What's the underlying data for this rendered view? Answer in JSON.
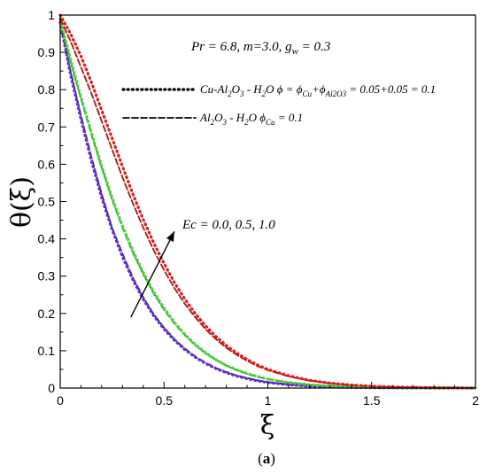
{
  "chart_data": {
    "type": "line",
    "xlabel": "ξ",
    "ylabel": "θ(ξ)",
    "xlim": [
      0,
      2
    ],
    "ylim": [
      0,
      1
    ],
    "x_ticks": [
      "0",
      "0.5",
      "1",
      "1.5",
      "2"
    ],
    "y_ticks": [
      "0",
      "0.1",
      "0.2",
      "0.3",
      "0.4",
      "0.5",
      "0.6",
      "0.7",
      "0.8",
      "0.9",
      "1"
    ],
    "grid": false,
    "params_text": {
      "pr": "Pr = 6.8, m=3.0, g",
      "gw_sub": "w",
      "gw_val": " = 0.3"
    },
    "legend": {
      "placement": "top-right",
      "entries": [
        {
          "style": "dotted",
          "parts": [
            {
              "t": "Cu-Al",
              "s": "n"
            },
            {
              "t": "2",
              "s": "sub"
            },
            {
              "t": "O",
              "s": "n"
            },
            {
              "t": "3",
              "s": "sub"
            },
            {
              "t": " - H",
              "s": "n"
            },
            {
              "t": "2",
              "s": "sub"
            },
            {
              "t": "O  ϕ = ϕ",
              "s": "n"
            },
            {
              "t": "Cu",
              "s": "sub"
            },
            {
              "t": "+ϕ",
              "s": "n"
            },
            {
              "t": "Al2O3",
              "s": "sub"
            },
            {
              "t": " = 0.05+0.05 = 0.1",
              "s": "n"
            }
          ]
        },
        {
          "style": "dashed",
          "parts": [
            {
              "t": "Al",
              "s": "n"
            },
            {
              "t": "2",
              "s": "sub"
            },
            {
              "t": "O",
              "s": "n"
            },
            {
              "t": "3",
              "s": "sub"
            },
            {
              "t": " - H",
              "s": "n"
            },
            {
              "t": "2",
              "s": "sub"
            },
            {
              "t": "O  ϕ",
              "s": "n"
            },
            {
              "t": "Cu",
              "s": "sub"
            },
            {
              "t": " = 0.1",
              "s": "n"
            }
          ]
        }
      ]
    },
    "annotation": {
      "text": "Ec = 0.0, 0.5, 1.0",
      "arrow_from": [
        0.34,
        0.19
      ],
      "arrow_to": [
        0.55,
        0.42
      ]
    },
    "caption": {
      "open": "(",
      "letter": "a",
      "close": ")"
    },
    "x": [
      0,
      0.05,
      0.1,
      0.15,
      0.2,
      0.25,
      0.3,
      0.35,
      0.4,
      0.45,
      0.5,
      0.55,
      0.6,
      0.65,
      0.7,
      0.75,
      0.8,
      0.85,
      0.9,
      0.95,
      1.0,
      1.1,
      1.2,
      1.3,
      1.4,
      1.5,
      1.6,
      1.7,
      1.8,
      1.9,
      2.0
    ],
    "series": [
      {
        "style": "dashed",
        "color": "#1a1aa0",
        "values": [
          0.98,
          0.85,
          0.73,
          0.62,
          0.52,
          0.43,
          0.36,
          0.296,
          0.243,
          0.198,
          0.162,
          0.131,
          0.106,
          0.085,
          0.068,
          0.054,
          0.043,
          0.034,
          0.027,
          0.021,
          0.016,
          0.0095,
          0.0055,
          0.0031,
          0.0017,
          0.0009,
          0.0005,
          0.0003,
          0.0001,
          0.0001,
          0.0
        ]
      },
      {
        "style": "dotted",
        "color": "#6b2fc7",
        "values": [
          0.98,
          0.84,
          0.72,
          0.61,
          0.51,
          0.425,
          0.352,
          0.29,
          0.238,
          0.194,
          0.158,
          0.128,
          0.103,
          0.083,
          0.066,
          0.052,
          0.041,
          0.032,
          0.025,
          0.019,
          0.015,
          0.0088,
          0.0051,
          0.0029,
          0.0016,
          0.0009,
          0.0005,
          0.0003,
          0.0001,
          0.0001,
          0.0
        ]
      },
      {
        "style": "dashed",
        "color": "#1f8a3a",
        "values": [
          0.98,
          0.875,
          0.775,
          0.68,
          0.59,
          0.505,
          0.43,
          0.363,
          0.305,
          0.254,
          0.21,
          0.173,
          0.142,
          0.115,
          0.093,
          0.075,
          0.06,
          0.048,
          0.038,
          0.03,
          0.024,
          0.0145,
          0.0087,
          0.0051,
          0.003,
          0.0017,
          0.001,
          0.0006,
          0.0003,
          0.0002,
          0.0001
        ]
      },
      {
        "style": "dotted",
        "color": "#4cd23a",
        "values": [
          0.99,
          0.88,
          0.78,
          0.685,
          0.595,
          0.51,
          0.435,
          0.368,
          0.31,
          0.258,
          0.214,
          0.176,
          0.144,
          0.117,
          0.095,
          0.076,
          0.061,
          0.049,
          0.039,
          0.031,
          0.024,
          0.015,
          0.009,
          0.0053,
          0.0031,
          0.0018,
          0.001,
          0.0006,
          0.0003,
          0.0002,
          0.0001
        ]
      },
      {
        "style": "dashed",
        "color": "#a01818",
        "values": [
          0.99,
          0.93,
          0.86,
          0.79,
          0.715,
          0.64,
          0.565,
          0.495,
          0.43,
          0.37,
          0.316,
          0.268,
          0.226,
          0.19,
          0.158,
          0.131,
          0.108,
          0.089,
          0.073,
          0.059,
          0.048,
          0.031,
          0.02,
          0.0125,
          0.0078,
          0.0048,
          0.0029,
          0.0017,
          0.001,
          0.0006,
          0.0003
        ]
      },
      {
        "style": "dotted",
        "color": "#e01c1c",
        "values": [
          1.0,
          0.95,
          0.89,
          0.82,
          0.745,
          0.67,
          0.595,
          0.52,
          0.452,
          0.39,
          0.334,
          0.283,
          0.239,
          0.2,
          0.167,
          0.138,
          0.114,
          0.094,
          0.077,
          0.062,
          0.05,
          0.033,
          0.021,
          0.013,
          0.0082,
          0.005,
          0.003,
          0.0018,
          0.0011,
          0.0006,
          0.0003
        ]
      }
    ]
  }
}
